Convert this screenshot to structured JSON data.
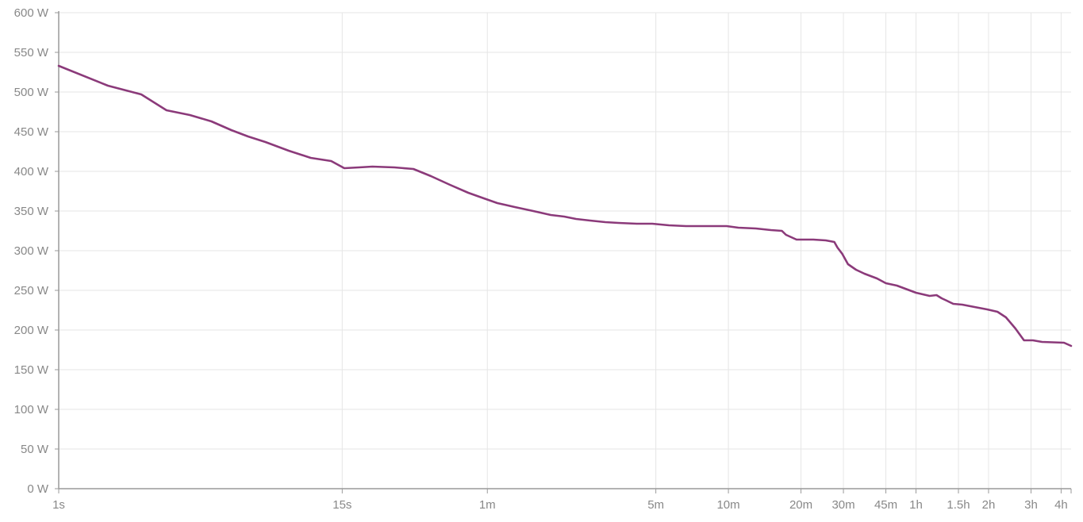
{
  "chart_data": {
    "type": "line",
    "title": "",
    "xlabel": "",
    "ylabel": "",
    "x_scale": "log",
    "x_unit": "seconds",
    "xlim": [
      1,
      15840
    ],
    "ylim": [
      0,
      600
    ],
    "grid": true,
    "legend": "none",
    "line_color": "#8b3a7a",
    "y_ticks": [
      {
        "value": 0,
        "label": "0 W"
      },
      {
        "value": 50,
        "label": "50 W"
      },
      {
        "value": 100,
        "label": "100 W"
      },
      {
        "value": 150,
        "label": "150 W"
      },
      {
        "value": 200,
        "label": "200 W"
      },
      {
        "value": 250,
        "label": "250 W"
      },
      {
        "value": 300,
        "label": "300 W"
      },
      {
        "value": 350,
        "label": "350 W"
      },
      {
        "value": 400,
        "label": "400 W"
      },
      {
        "value": 450,
        "label": "450 W"
      },
      {
        "value": 500,
        "label": "500 W"
      },
      {
        "value": 550,
        "label": "550 W"
      },
      {
        "value": 600,
        "label": "600 W"
      }
    ],
    "x_ticks": [
      {
        "value": 1,
        "label": "1s"
      },
      {
        "value": 15,
        "label": "15s"
      },
      {
        "value": 60,
        "label": "1m"
      },
      {
        "value": 300,
        "label": "5m"
      },
      {
        "value": 600,
        "label": "10m"
      },
      {
        "value": 1200,
        "label": "20m"
      },
      {
        "value": 1800,
        "label": "30m"
      },
      {
        "value": 2700,
        "label": "45m"
      },
      {
        "value": 3600,
        "label": "1h"
      },
      {
        "value": 5400,
        "label": "1.5h"
      },
      {
        "value": 7200,
        "label": "2h"
      },
      {
        "value": 10800,
        "label": "3h"
      },
      {
        "value": 14400,
        "label": "4h"
      }
    ],
    "series": [
      {
        "points": [
          [
            1,
            533
          ],
          [
            1.6,
            508
          ],
          [
            2.2,
            497
          ],
          [
            2.8,
            477
          ],
          [
            3.5,
            471
          ],
          [
            4.3,
            463
          ],
          [
            5.2,
            452
          ],
          [
            6.1,
            444
          ],
          [
            7.2,
            437
          ],
          [
            9,
            426
          ],
          [
            11.1,
            417
          ],
          [
            13.5,
            413
          ],
          [
            15.3,
            404
          ],
          [
            17.6,
            405
          ],
          [
            20,
            406
          ],
          [
            24.7,
            405
          ],
          [
            29.6,
            403
          ],
          [
            35,
            394
          ],
          [
            42,
            383
          ],
          [
            50,
            373
          ],
          [
            58,
            366
          ],
          [
            66,
            360
          ],
          [
            78,
            355
          ],
          [
            93,
            350
          ],
          [
            110,
            345
          ],
          [
            125,
            343
          ],
          [
            140,
            340
          ],
          [
            160,
            338
          ],
          [
            185,
            336
          ],
          [
            210,
            335
          ],
          [
            250,
            334
          ],
          [
            290,
            334
          ],
          [
            340,
            332
          ],
          [
            400,
            331
          ],
          [
            490,
            331
          ],
          [
            590,
            331
          ],
          [
            660,
            329
          ],
          [
            780,
            328
          ],
          [
            900,
            326
          ],
          [
            1000,
            325
          ],
          [
            1040,
            320
          ],
          [
            1150,
            314
          ],
          [
            1350,
            314
          ],
          [
            1520,
            313
          ],
          [
            1650,
            311
          ],
          [
            1700,
            304
          ],
          [
            1780,
            296
          ],
          [
            1880,
            283
          ],
          [
            2030,
            276
          ],
          [
            2200,
            271
          ],
          [
            2480,
            265
          ],
          [
            2700,
            259
          ],
          [
            3000,
            256
          ],
          [
            3600,
            247
          ],
          [
            4100,
            243
          ],
          [
            4380,
            244
          ],
          [
            4600,
            240
          ],
          [
            4830,
            237
          ],
          [
            5140,
            233
          ],
          [
            5600,
            232
          ],
          [
            6300,
            229
          ],
          [
            7100,
            226
          ],
          [
            7840,
            223
          ],
          [
            8500,
            216
          ],
          [
            9300,
            202
          ],
          [
            10100,
            187
          ],
          [
            11000,
            187
          ],
          [
            12000,
            185
          ],
          [
            14800,
            184
          ],
          [
            15840,
            180
          ]
        ]
      }
    ]
  }
}
